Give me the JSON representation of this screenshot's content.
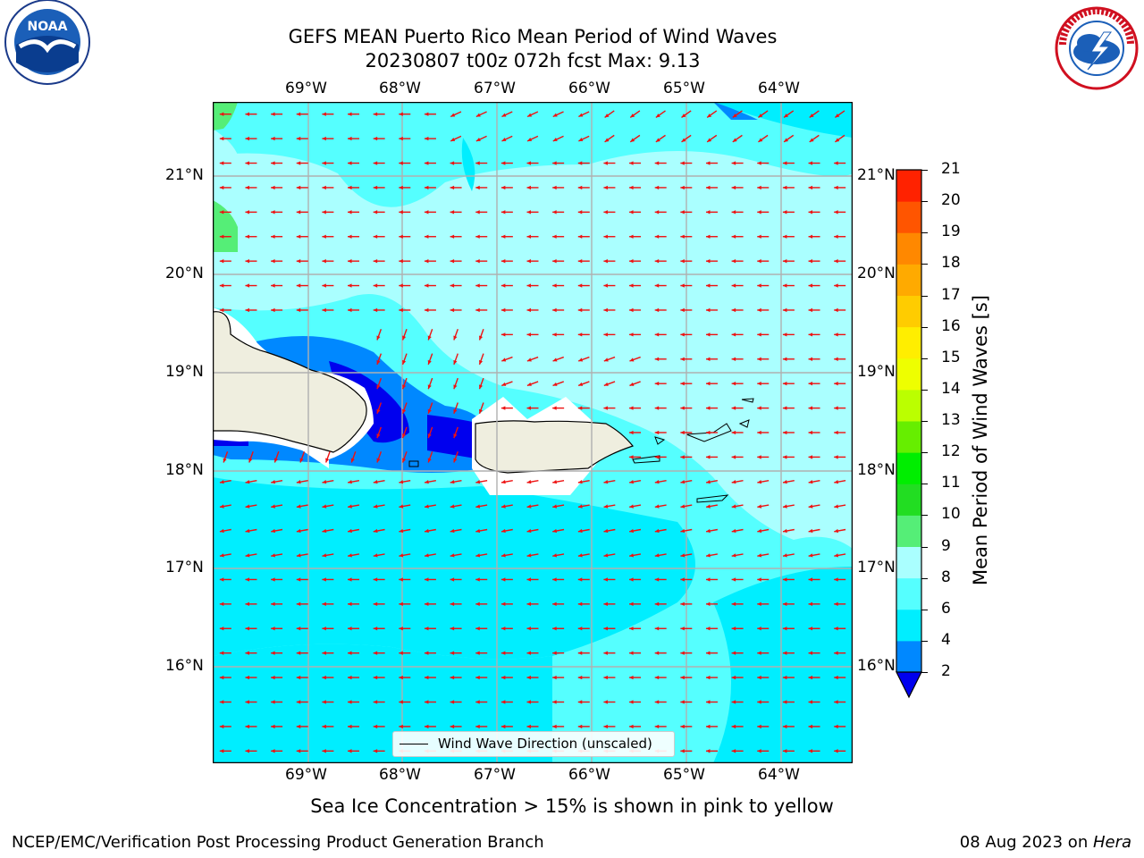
{
  "header": {
    "title_line1": "GEFS MEAN Puerto Rico Mean Period of Wind Waves",
    "title_line2": "20230807 t00z 072h fcst   Max: 9.13"
  },
  "logos": {
    "left": "noaa-logo",
    "right": "national-weather-service-logo"
  },
  "axes": {
    "lon_labels": [
      "69°W",
      "68°W",
      "67°W",
      "66°W",
      "65°W",
      "64°W"
    ],
    "lat_labels": [
      "21°N",
      "20°N",
      "19°N",
      "18°N",
      "17°N",
      "16°N"
    ]
  },
  "legend": {
    "label": "Wind Wave Direction (unscaled)"
  },
  "colorbar": {
    "title": "Mean Period of Wind Waves [s]",
    "levels": [
      "2",
      "4",
      "6",
      "8",
      "9",
      "10",
      "11",
      "12",
      "13",
      "14",
      "15",
      "16",
      "17",
      "18",
      "19",
      "20",
      "21"
    ],
    "colors": [
      "#0022ff",
      "#0088ff",
      "#00eeff",
      "#55ffff",
      "#aaffff",
      "#55ee77",
      "#22dd22",
      "#00ee00",
      "#66ee00",
      "#bbff00",
      "#eeff00",
      "#ffee00",
      "#ffcc00",
      "#ffaa00",
      "#ff8800",
      "#ff5500",
      "#ff2200",
      "#ff0000"
    ],
    "under_color": "#0000ee"
  },
  "note": "Sea Ice Concentration > 15% is shown in pink to yellow",
  "footer": {
    "left": "NCEP/EMC/Verification Post Processing Product Generation Branch",
    "date": "08 Aug 2023 on ",
    "machine": "Hera"
  }
}
